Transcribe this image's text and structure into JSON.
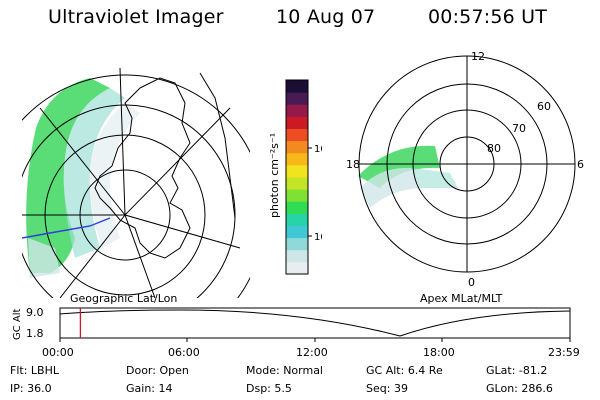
{
  "header": {
    "title": "Ultraviolet Imager",
    "date": "10 Aug 07",
    "time": "00:57:56 UT"
  },
  "left_panel": {
    "caption": "Geographic Lat/Lon"
  },
  "right_panel": {
    "caption": "Apex MLat/MLT",
    "mlt_labels": [
      "12",
      "18",
      "6",
      "0"
    ],
    "lat_labels": [
      "60",
      "70",
      "80"
    ]
  },
  "colorbar": {
    "axis_label": "photon cm⁻²s⁻¹",
    "ticks": [
      "100",
      "10"
    ],
    "colors": [
      "#e8eef0",
      "#cfe6e8",
      "#8fdad8",
      "#3ec8d6",
      "#28d3a8",
      "#30dc55",
      "#7fe133",
      "#c2e626",
      "#f0e41e",
      "#f9b81a",
      "#f38a1f",
      "#ec4d22",
      "#cc1a24",
      "#931a4a",
      "#4a1a55",
      "#1a0f33"
    ]
  },
  "timeline": {
    "axis_label": "GC Alt",
    "y_ticks": [
      "9.0",
      "1.8"
    ],
    "x_ticks": [
      "00:00",
      "06:00",
      "12:00",
      "18:00",
      "23:59"
    ],
    "marker_fraction": 0.04
  },
  "info": {
    "row1": [
      {
        "label": "Flt:",
        "value": "LBHL"
      },
      {
        "label": "Door:",
        "value": "Open"
      },
      {
        "label": "Mode:",
        "value": "Normal"
      },
      {
        "label": "GC Alt:",
        "value": "6.4 Re"
      },
      {
        "label": "GLat:",
        "value": "-81.2"
      }
    ],
    "row2": [
      {
        "label": "IP:",
        "value": "36.0"
      },
      {
        "label": "Gain:",
        "value": "14"
      },
      {
        "label": "Dsp:",
        "value": "5.5"
      },
      {
        "label": "Seq:",
        "value": "39"
      },
      {
        "label": "GLon:",
        "value": "286.6"
      }
    ]
  }
}
